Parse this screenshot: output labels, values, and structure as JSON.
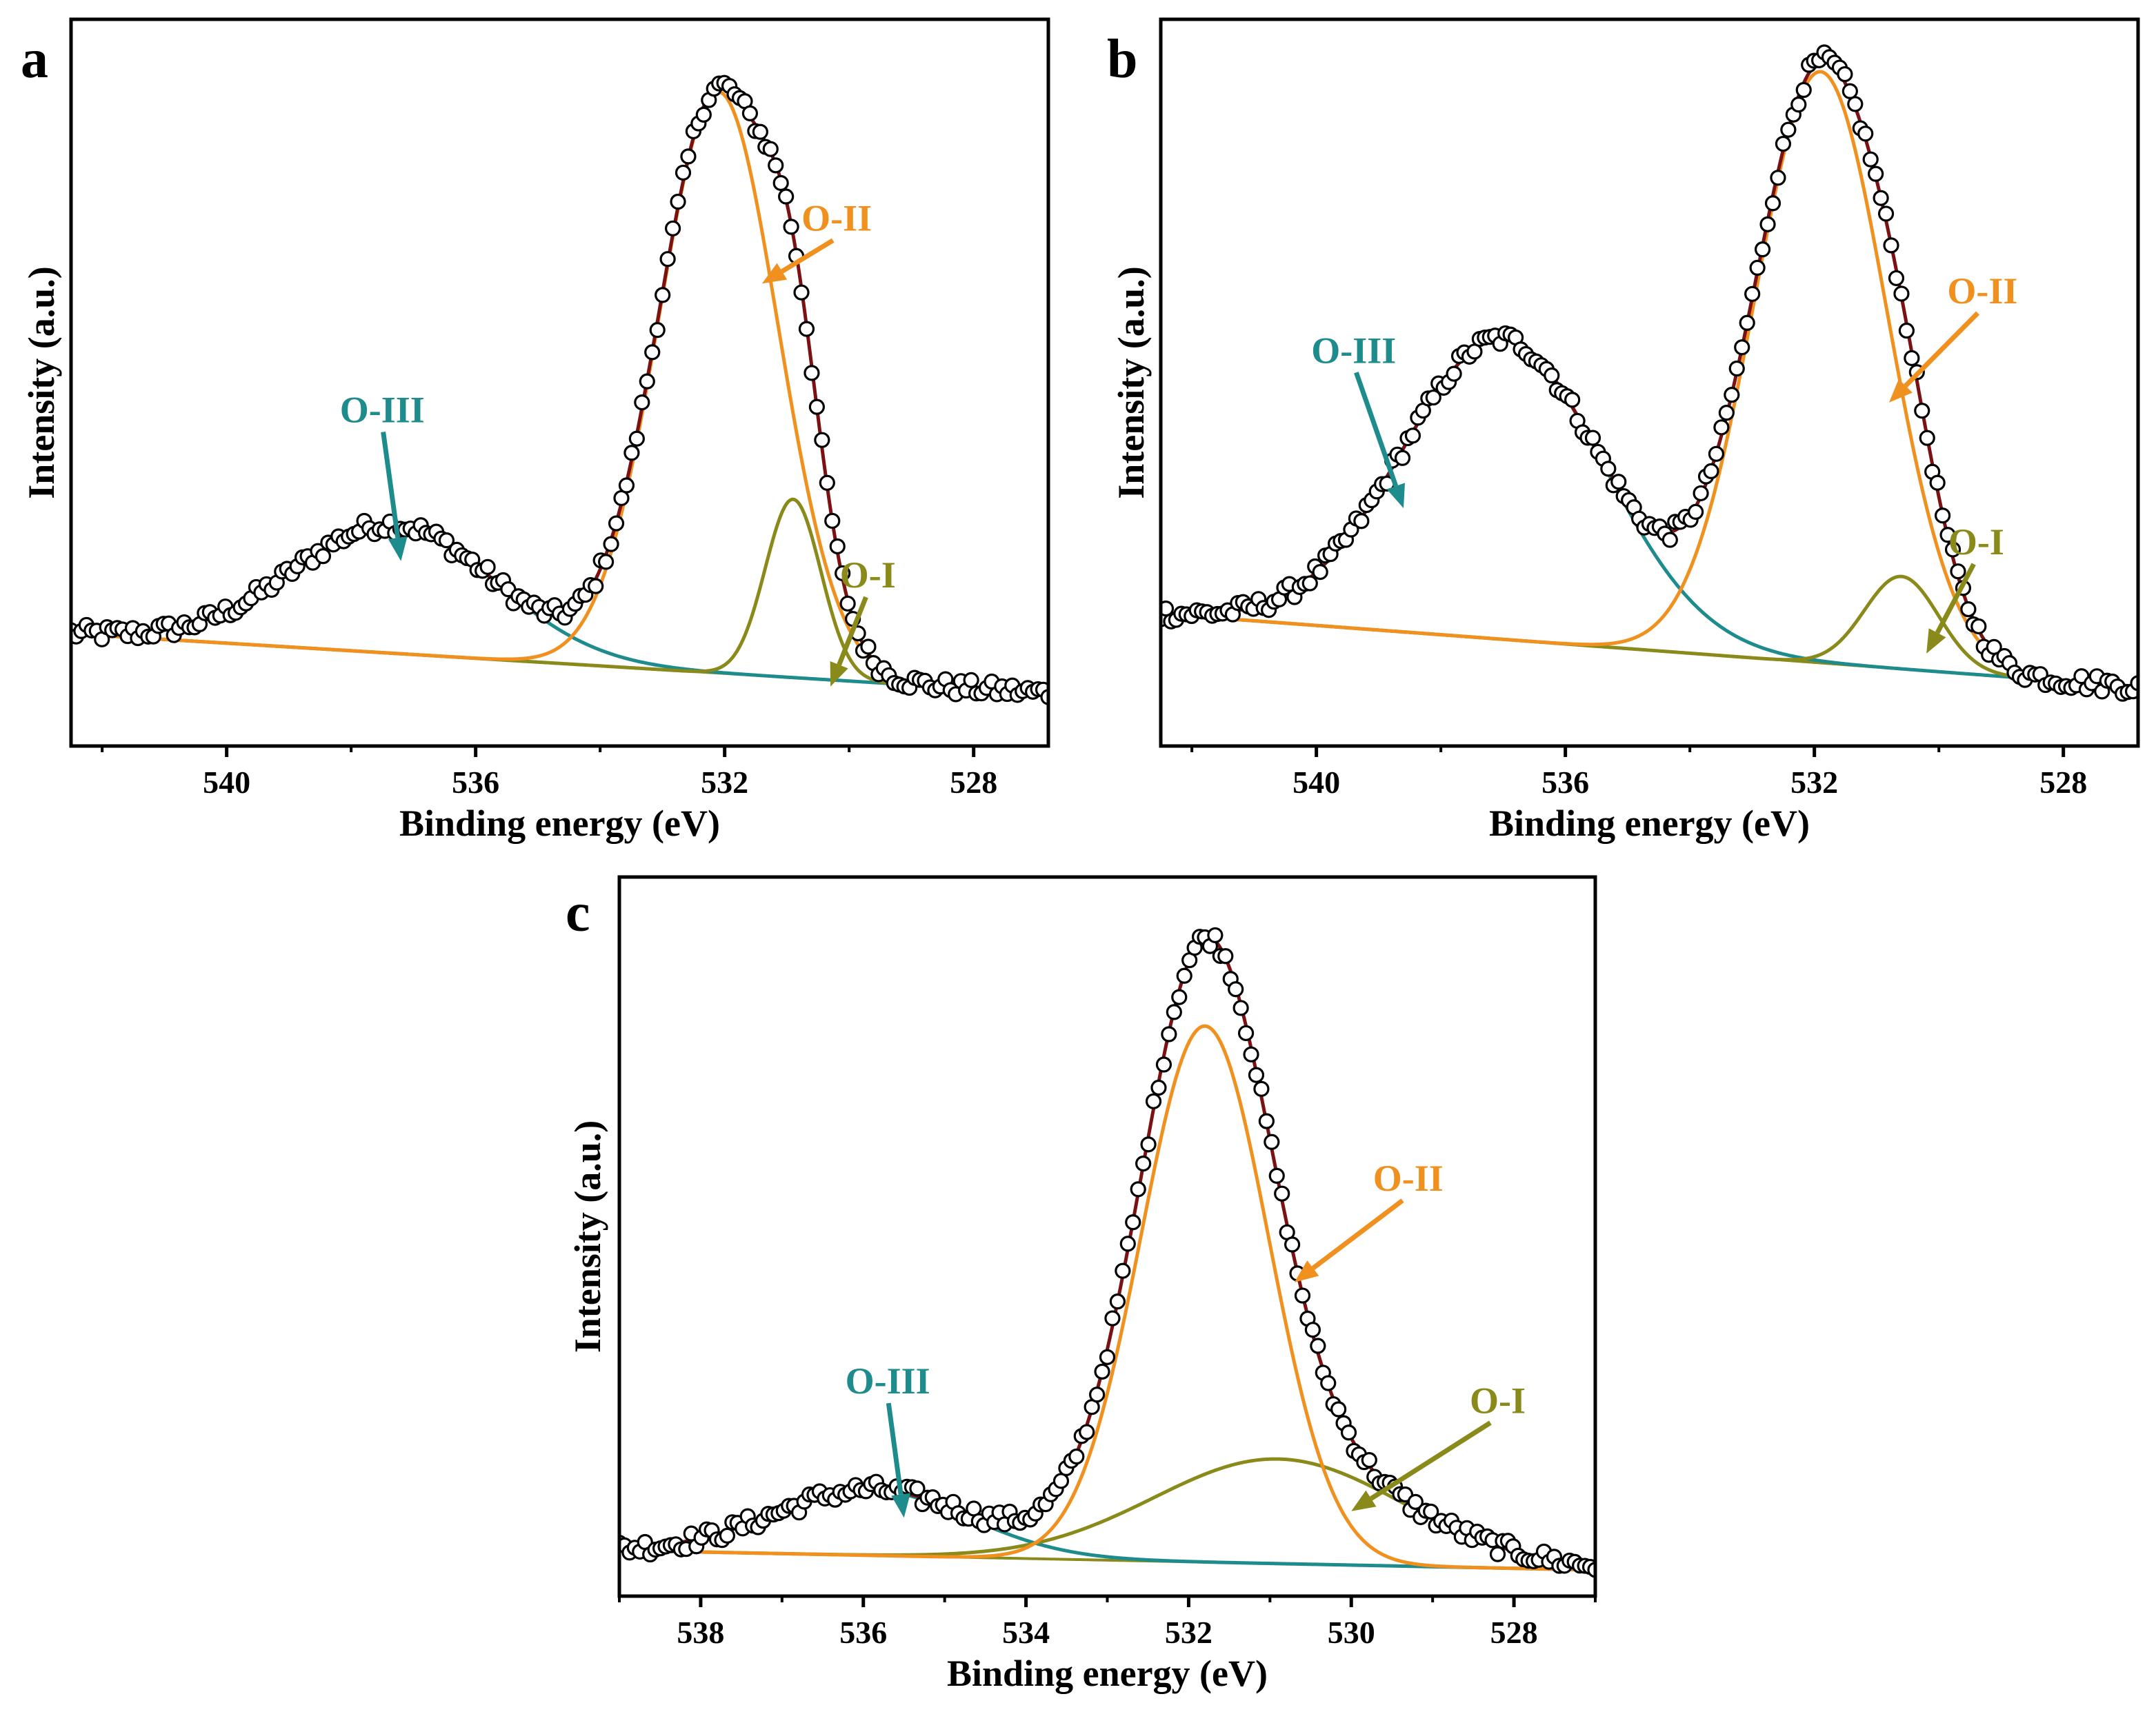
{
  "figure": {
    "description_colors": {
      "data_points": "#000000",
      "envelope": "#7b1113",
      "background": "#8a8a1a",
      "O-I": "#8a8a1a",
      "O-II": "#f0901e",
      "O-III": "#1e8c8c"
    }
  },
  "chart_data": [
    {
      "panel": "a",
      "type": "scatter",
      "title": "",
      "xlabel": "Binding energy (eV)",
      "ylabel": "Intensity (a.u.)",
      "xlim": [
        542.5,
        526.8
      ],
      "ylim": [
        0,
        110
      ],
      "x_ticks": [
        540,
        536,
        532,
        528
      ],
      "x_tick_labels": [
        "540",
        "536",
        "532",
        "528"
      ],
      "baseline": {
        "x_start": 542.5,
        "y_start": 17.0,
        "x_end": 526.8,
        "y_end": 8.0
      },
      "components": [
        {
          "name": "O-I",
          "color": "#8a8a1a",
          "center": 530.9,
          "height": 27.0,
          "fwhm": 1.05
        },
        {
          "name": "O-II",
          "color": "#f0901e",
          "center": 532.1,
          "height": 88.0,
          "fwhm": 2.25
        },
        {
          "name": "O-III",
          "color": "#1e8c8c",
          "center": 537.3,
          "height": 19.5,
          "fwhm": 3.8
        }
      ],
      "labels": [
        {
          "text": "O-II",
          "color": "#f0901e",
          "x": 530.2,
          "y": 78,
          "arrow_to": [
            531.4,
            70
          ]
        },
        {
          "text": "O-I",
          "color": "#8a8a1a",
          "x": 529.7,
          "y": 24,
          "arrow_to": [
            530.3,
            9
          ]
        },
        {
          "text": "O-III",
          "color": "#1e8c8c",
          "x": 537.5,
          "y": 49,
          "arrow_to": [
            537.2,
            28
          ]
        }
      ]
    },
    {
      "panel": "b",
      "type": "scatter",
      "title": "",
      "xlabel": "Binding energy (eV)",
      "ylabel": "Intensity (a.u.)",
      "xlim": [
        542.5,
        526.8
      ],
      "ylim": [
        0,
        110
      ],
      "x_ticks": [
        540,
        536,
        532,
        528
      ],
      "x_tick_labels": [
        "540",
        "536",
        "532",
        "528"
      ],
      "baseline": {
        "x_start": 542.5,
        "y_start": 20.0,
        "x_end": 526.8,
        "y_end": 9.0
      },
      "components": [
        {
          "name": "O-I",
          "color": "#8a8a1a",
          "center": 530.6,
          "height": 14.0,
          "fwhm": 1.4
        },
        {
          "name": "O-II",
          "color": "#f0901e",
          "center": 531.9,
          "height": 89.5,
          "fwhm": 2.5
        },
        {
          "name": "O-III",
          "color": "#1e8c8c",
          "center": 537.0,
          "height": 45.5,
          "fwhm": 3.8
        }
      ],
      "labels": [
        {
          "text": "O-II",
          "color": "#f0901e",
          "x": 529.3,
          "y": 67,
          "arrow_to": [
            530.8,
            52
          ]
        },
        {
          "text": "O-I",
          "color": "#8a8a1a",
          "x": 529.4,
          "y": 29,
          "arrow_to": [
            530.2,
            14
          ]
        },
        {
          "text": "O-III",
          "color": "#1e8c8c",
          "x": 539.4,
          "y": 58,
          "arrow_to": [
            538.6,
            36
          ]
        }
      ]
    },
    {
      "panel": "c",
      "type": "scatter",
      "title": "",
      "xlabel": "Binding energy (eV)",
      "ylabel": "Intensity (a.u.)",
      "xlim": [
        539,
        527
      ],
      "ylim": [
        0,
        110
      ],
      "x_ticks": [
        538,
        536,
        534,
        532,
        530,
        528
      ],
      "x_tick_labels": [
        "538",
        "536",
        "534",
        "532",
        "530",
        "528"
      ],
      "baseline": {
        "x_start": 539,
        "y_start": 7.0,
        "x_end": 527,
        "y_end": 4.0
      },
      "components": [
        {
          "name": "O-I",
          "color": "#8a8a1a",
          "center": 530.9,
          "height": 16.0,
          "fwhm": 3.6
        },
        {
          "name": "O-II",
          "color": "#f0901e",
          "center": 531.8,
          "height": 82.0,
          "fwhm": 1.85
        },
        {
          "name": "O-III",
          "color": "#1e8c8c",
          "center": 535.9,
          "height": 10.0,
          "fwhm": 2.8
        }
      ],
      "labels": [
        {
          "text": "O-II",
          "color": "#f0901e",
          "x": 529.3,
          "y": 62,
          "arrow_to": [
            530.7,
            48
          ]
        },
        {
          "text": "O-I",
          "color": "#8a8a1a",
          "x": 528.2,
          "y": 28,
          "arrow_to": [
            530.0,
            13
          ]
        },
        {
          "text": "O-III",
          "color": "#1e8c8c",
          "x": 535.7,
          "y": 31,
          "arrow_to": [
            535.5,
            12
          ]
        }
      ]
    }
  ]
}
